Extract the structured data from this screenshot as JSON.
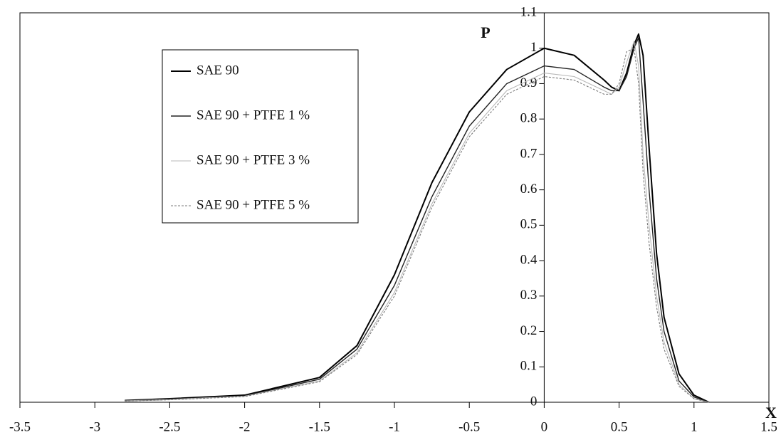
{
  "chart_data": {
    "type": "line",
    "x_label": "X",
    "y_label": "P",
    "x": [
      -2.8,
      -2.5,
      -2,
      -1.5,
      -1.25,
      -1,
      -0.75,
      -0.5,
      -0.25,
      0,
      0.2,
      0.4,
      0.45,
      0.5,
      0.55,
      0.6,
      0.63,
      0.66,
      0.7,
      0.75,
      0.8,
      0.9,
      1,
      1.1
    ],
    "series": [
      {
        "name": "SAE 90",
        "color": "#000000",
        "values": [
          0.005,
          0.01,
          0.02,
          0.07,
          0.16,
          0.36,
          0.62,
          0.82,
          0.94,
          1.0,
          0.98,
          0.91,
          0.89,
          0.88,
          0.93,
          1.01,
          1.04,
          0.98,
          0.72,
          0.42,
          0.24,
          0.08,
          0.02,
          0
        ]
      },
      {
        "name": "SAE 90 + PTFE 1 %",
        "color": "#222222",
        "values": [
          0.004,
          0.008,
          0.018,
          0.065,
          0.15,
          0.33,
          0.58,
          0.78,
          0.9,
          0.95,
          0.94,
          0.89,
          0.88,
          0.88,
          0.92,
          1.0,
          1.03,
          0.85,
          0.6,
          0.35,
          0.2,
          0.06,
          0.015,
          0
        ]
      },
      {
        "name": "SAE 90 + PTFE 3 %",
        "color": "#b8b8b8",
        "values": [
          0.004,
          0.008,
          0.017,
          0.06,
          0.14,
          0.31,
          0.56,
          0.76,
          0.88,
          0.93,
          0.92,
          0.88,
          0.87,
          0.89,
          0.96,
          1.02,
          0.95,
          0.7,
          0.5,
          0.3,
          0.17,
          0.05,
          0.01,
          0
        ]
      },
      {
        "name": "SAE 90 + PTFE 5 %",
        "color": "#7a7a7a",
        "values": [
          0.003,
          0.007,
          0.016,
          0.058,
          0.135,
          0.3,
          0.55,
          0.75,
          0.87,
          0.92,
          0.91,
          0.87,
          0.87,
          0.9,
          0.99,
          1.0,
          0.9,
          0.65,
          0.45,
          0.27,
          0.15,
          0.045,
          0.01,
          0
        ]
      }
    ],
    "xlim": [
      -3.5,
      1.5
    ],
    "xticks": [
      -3.5,
      -3,
      -2.5,
      -2,
      -1.5,
      -1,
      -0.5,
      0,
      0.5,
      1,
      1.5
    ],
    "ylim": [
      0,
      1.1
    ],
    "yticks": [
      0,
      0.1,
      0.2,
      0.3,
      0.4,
      0.5,
      0.6,
      0.7,
      0.8,
      0.9,
      1,
      1.1
    ],
    "grid": false,
    "legend": "upper left"
  }
}
